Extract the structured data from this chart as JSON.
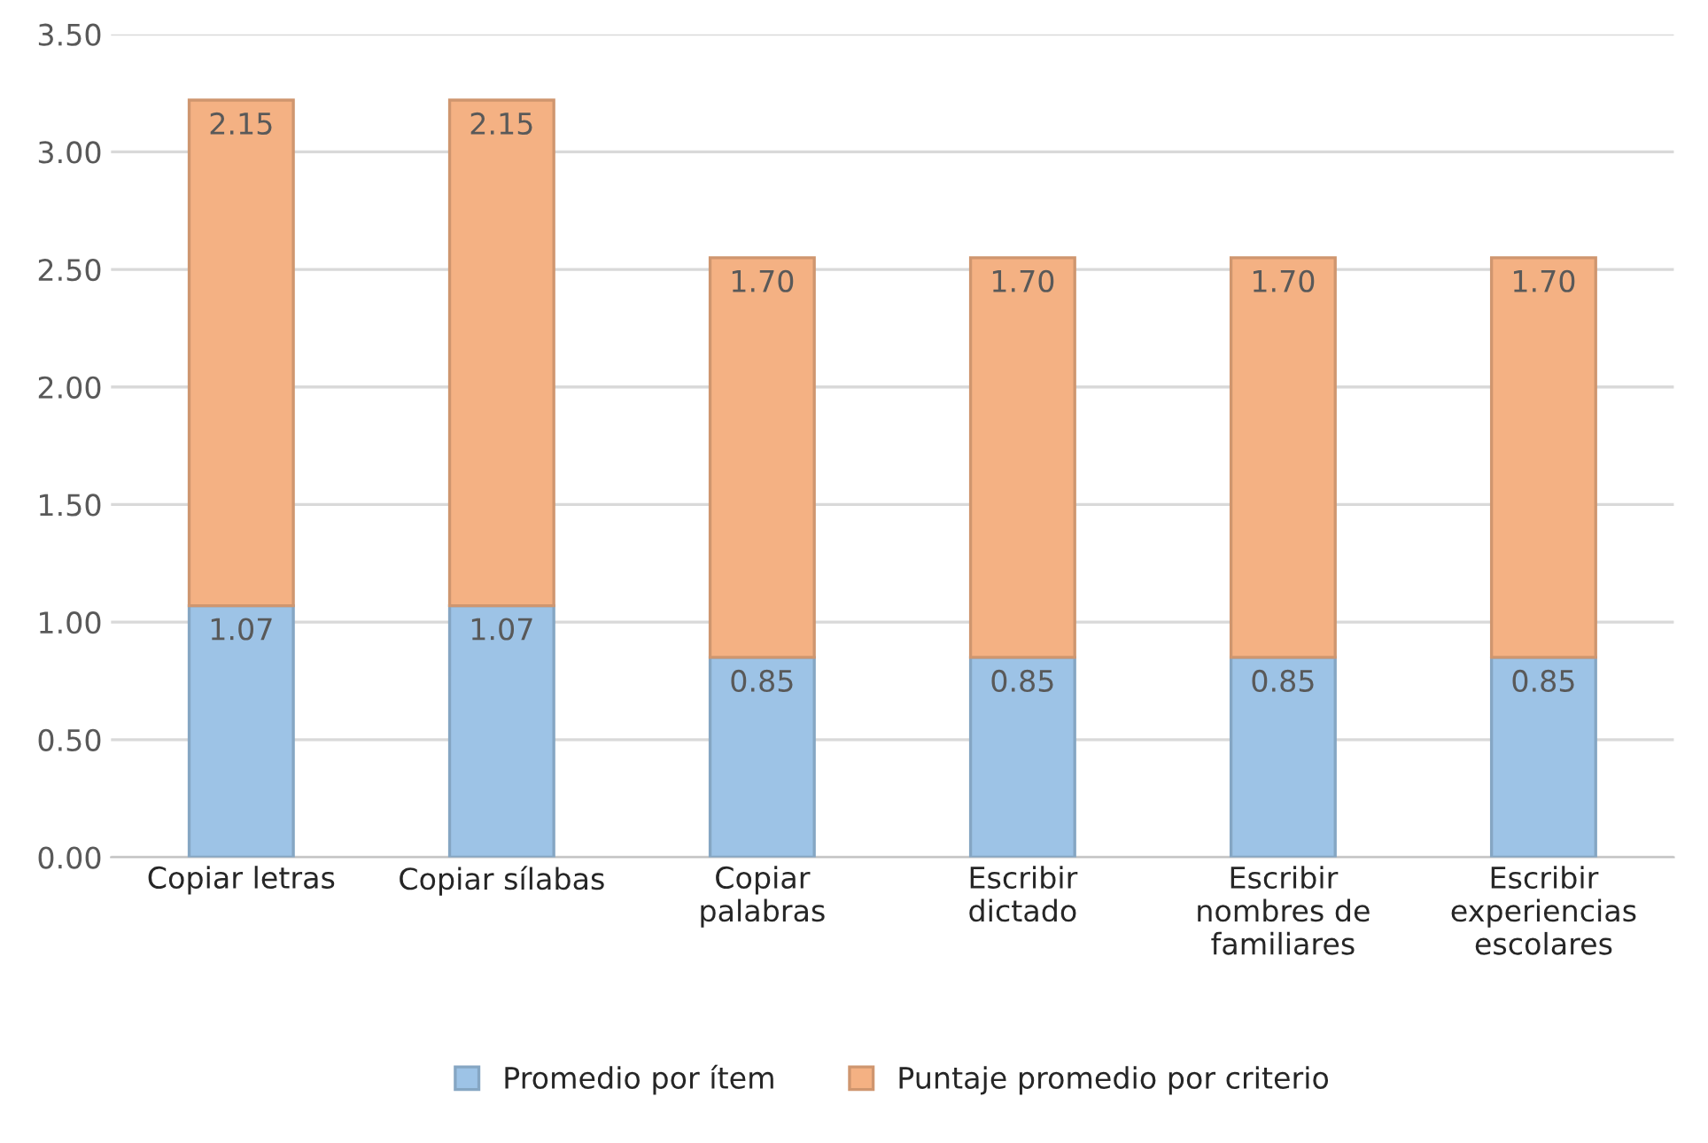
{
  "chart_data": {
    "type": "bar",
    "stacked": true,
    "categories": [
      "Copiar letras",
      "Copiar sílabas",
      "Copiar\npalabras",
      "Escribir\ndictado",
      "Escribir\nnombres de\nfamiliares",
      "Escribir\nexperiencias\nescolares"
    ],
    "series": [
      {
        "name": "Promedio por ítem",
        "color": "#9dc3e6",
        "values": [
          1.07,
          1.07,
          0.85,
          0.85,
          0.85,
          0.85
        ],
        "value_labels": [
          "1.07",
          "1.07",
          "0.85",
          "0.85",
          "0.85",
          "0.85"
        ]
      },
      {
        "name": "Puntaje promedio por criterio",
        "color": "#f4b183",
        "values": [
          2.15,
          2.15,
          1.7,
          1.7,
          1.7,
          1.7
        ],
        "value_labels": [
          "2.15",
          "2.15",
          "1.70",
          "1.70",
          "1.70",
          "1.70"
        ]
      }
    ],
    "ylim": [
      0,
      3.5
    ],
    "yticks": [
      {
        "value": 0,
        "label": "0.00"
      },
      {
        "value": 0.5,
        "label": "0.50"
      },
      {
        "value": 1,
        "label": "1.00"
      },
      {
        "value": 1.5,
        "label": "1.50"
      },
      {
        "value": 2,
        "label": "2.00"
      },
      {
        "value": 2.5,
        "label": "2.50"
      },
      {
        "value": 3,
        "label": "3.00"
      },
      {
        "value": 3.5,
        "label": "3.50"
      }
    ],
    "grid": "y",
    "legend": "bottom"
  }
}
